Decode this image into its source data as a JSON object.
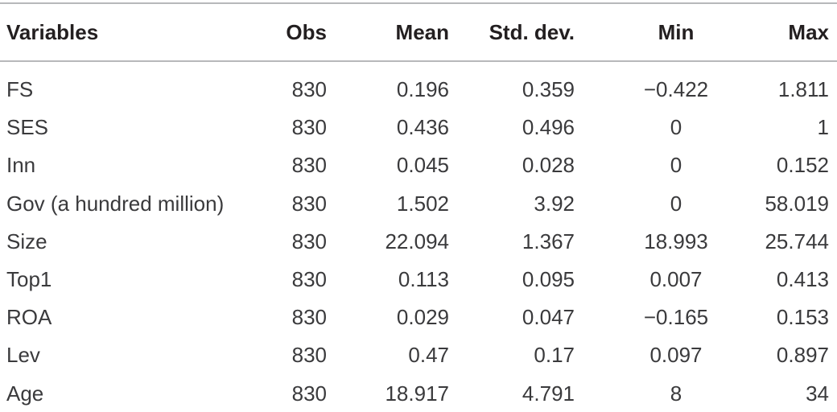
{
  "table": {
    "headers": [
      "Variables",
      "Obs",
      "Mean",
      "Std. dev.",
      "Min",
      "Max"
    ],
    "rows": [
      [
        "FS",
        "830",
        "0.196",
        "0.359",
        "−0.422",
        "1.811"
      ],
      [
        "SES",
        "830",
        "0.436",
        "0.496",
        "0",
        "1"
      ],
      [
        "Inn",
        "830",
        "0.045",
        "0.028",
        "0",
        "0.152"
      ],
      [
        "Gov (a hundred million)",
        "830",
        "1.502",
        "3.92",
        "0",
        "58.019"
      ],
      [
        "Size",
        "830",
        "22.094",
        "1.367",
        "18.993",
        "25.744"
      ],
      [
        "Top1",
        "830",
        "0.113",
        "0.095",
        "0.007",
        "0.413"
      ],
      [
        "ROA",
        "830",
        "0.029",
        "0.047",
        "−0.165",
        "0.153"
      ],
      [
        "Lev",
        "830",
        "0.47",
        "0.17",
        "0.097",
        "0.897"
      ],
      [
        "Age",
        "830",
        "18.917",
        "4.791",
        "8",
        "34"
      ]
    ]
  }
}
